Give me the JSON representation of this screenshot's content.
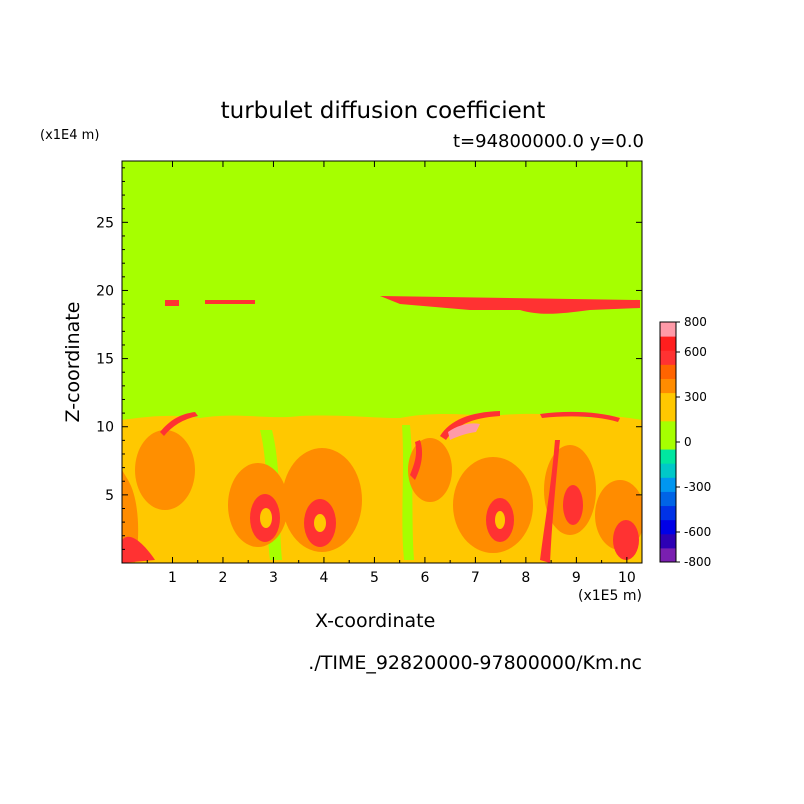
{
  "chart_data": {
    "type": "heatmap",
    "title": "turbulet diffusion coefficient",
    "time_label": "t=94800000.0 y=0.0",
    "xlabel": "X-coordinate",
    "ylabel": "Z-coordinate",
    "x_unit": "(x1E5 m)",
    "z_unit": "(x1E4 m)",
    "source_file": "./TIME_92820000-97800000/Km.nc",
    "xlim": [
      0,
      10.3
    ],
    "ylim": [
      0,
      29.5
    ],
    "x_ticks": [
      "1",
      "2",
      "3",
      "4",
      "5",
      "6",
      "7",
      "8",
      "9",
      "10"
    ],
    "y_ticks": [
      "5",
      "10",
      "15",
      "20",
      "25"
    ],
    "colorbar": {
      "levels": [
        -800,
        -700,
        -600,
        -500,
        -400,
        -300,
        -200,
        -100,
        0,
        100,
        200,
        300,
        400,
        500,
        600,
        700,
        800
      ],
      "colors": [
        "#7a1fb0",
        "#2d00b4",
        "#0000e6",
        "#0032e6",
        "#0064e6",
        "#0096f0",
        "#00c8c8",
        "#00e6a0",
        "#a6ff00",
        "#a6ff00",
        "#ffc800",
        "#ffc800",
        "#ff8c00",
        "#ff6400",
        "#ff3232",
        "#ff1e1e",
        "#ff9aa8"
      ],
      "tick_labels": [
        "800",
        "600",
        "300",
        "0",
        "-300",
        "-600",
        "-800"
      ]
    },
    "layers": [
      {
        "z_range": [
          10.5,
          29.5
        ],
        "value": 0,
        "description_color": "#a6ff00"
      },
      {
        "z_range": [
          0,
          10.5
        ],
        "value": 300,
        "description_color": "#ffc800"
      }
    ]
  }
}
